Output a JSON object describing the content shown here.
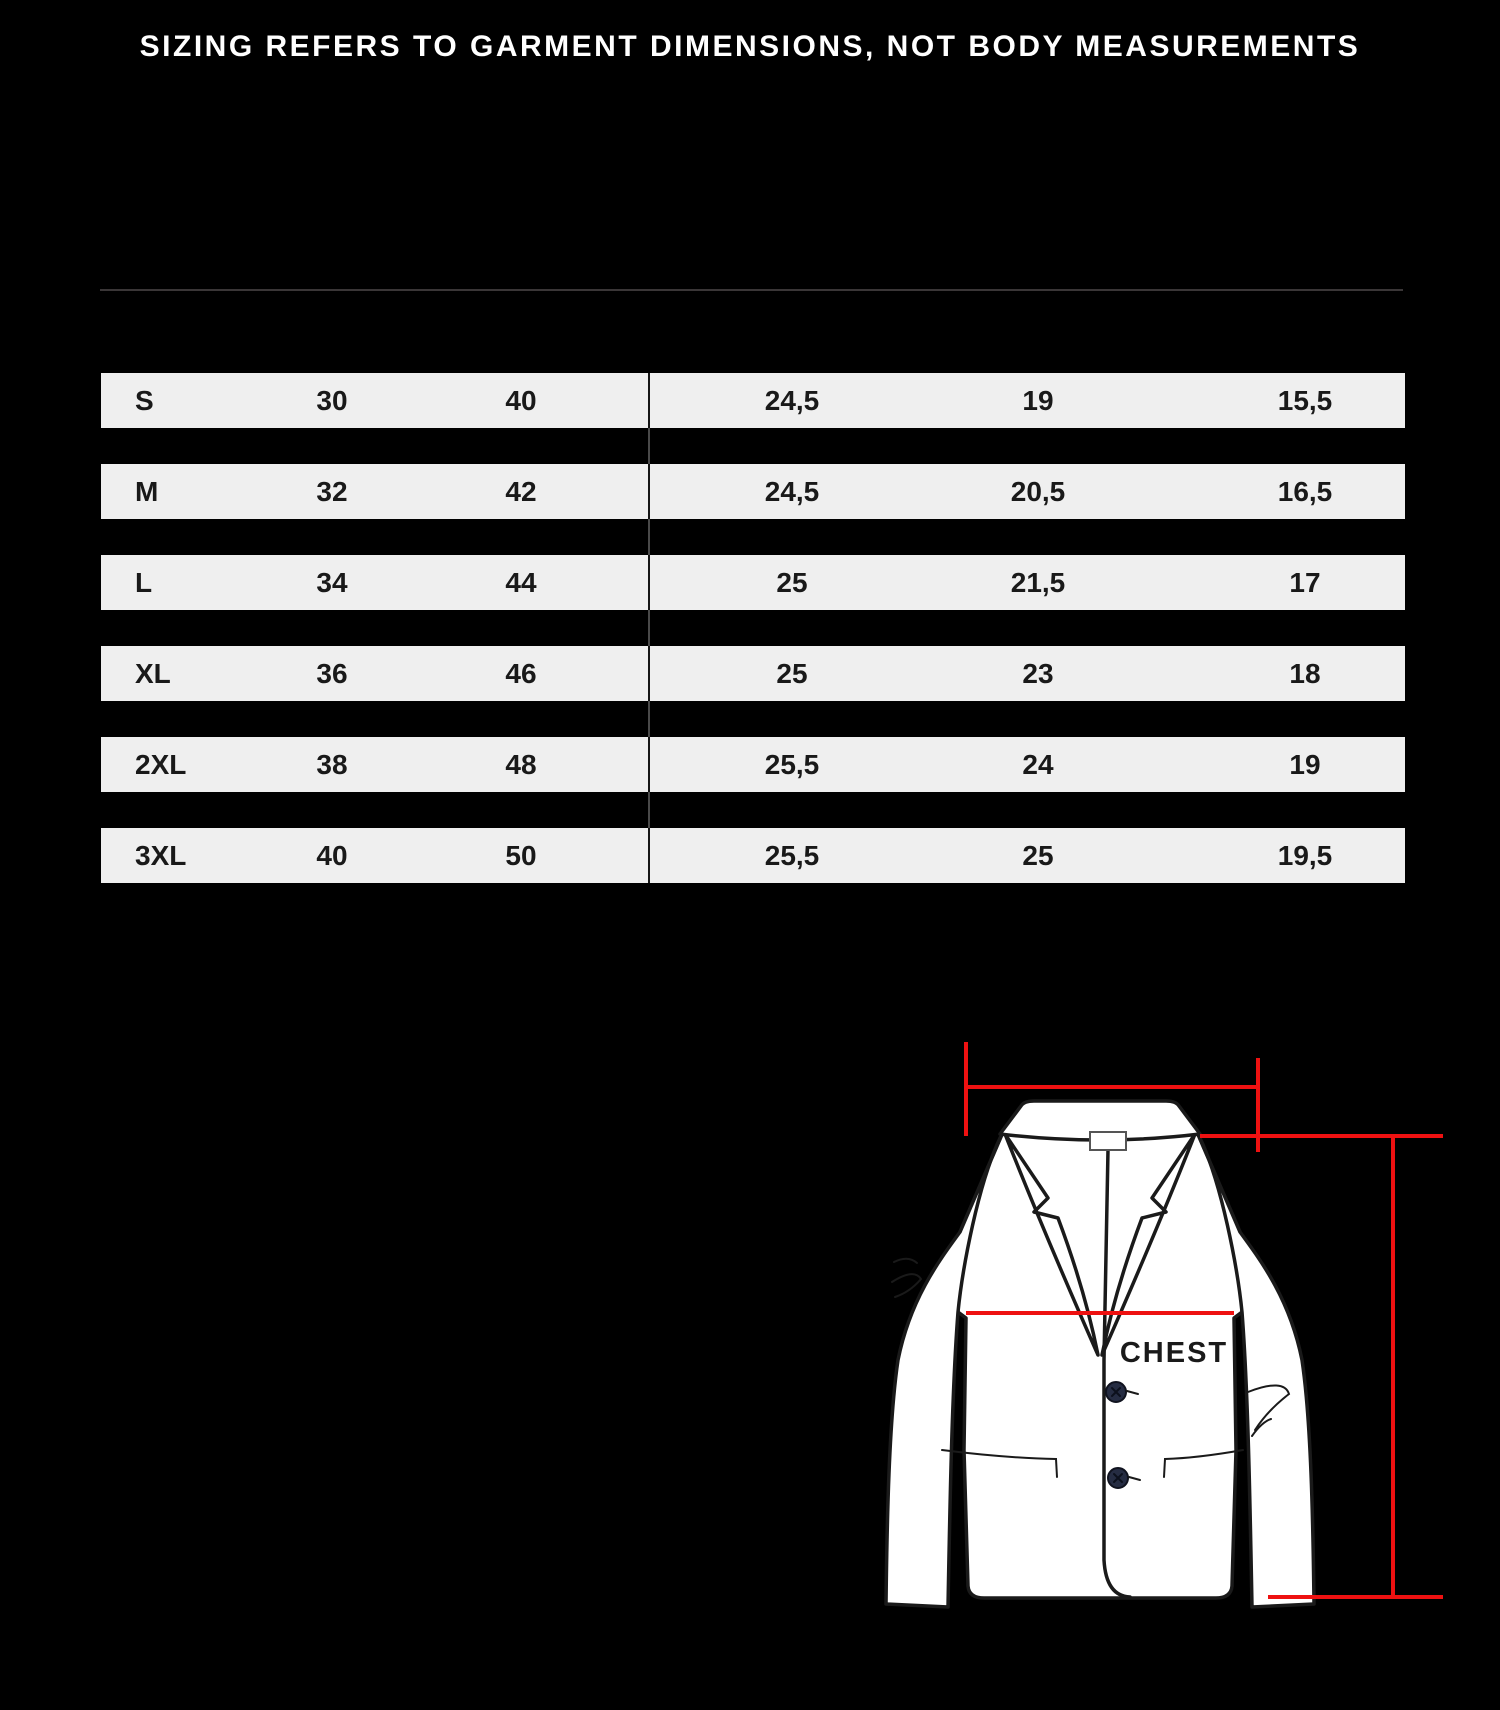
{
  "header": {
    "title": "SIZING REFERS TO GARMENT DIMENSIONS, NOT BODY MEASUREMENTS"
  },
  "size_chart": {
    "rows": [
      {
        "size": "S",
        "values": [
          "30",
          "40",
          "24,5",
          "19",
          "15,5"
        ]
      },
      {
        "size": "M",
        "values": [
          "32",
          "42",
          "24,5",
          "20,5",
          "16,5"
        ]
      },
      {
        "size": "L",
        "values": [
          "34",
          "44",
          "25",
          "21,5",
          "17"
        ]
      },
      {
        "size": "XL",
        "values": [
          "36",
          "46",
          "25",
          "23",
          "18"
        ]
      },
      {
        "size": "2XL",
        "values": [
          "38",
          "48",
          "25,5",
          "24",
          "19"
        ]
      },
      {
        "size": "3XL",
        "values": [
          "40",
          "50",
          "25,5",
          "25",
          "19,5"
        ]
      }
    ]
  },
  "diagram": {
    "chest_label": "CHEST"
  },
  "colors": {
    "bg": "#000000",
    "title": "#ffffff",
    "divider": "#3a3637",
    "row_bg": "#efefef",
    "cell_text": "#191919",
    "vline_on_row": "#161616",
    "vline_on_gap": "#4a4a4a",
    "red": "#ee1111",
    "garment_stroke": "#1a1a1a",
    "garment_fill": "#ffffff",
    "button": "#252c42"
  }
}
